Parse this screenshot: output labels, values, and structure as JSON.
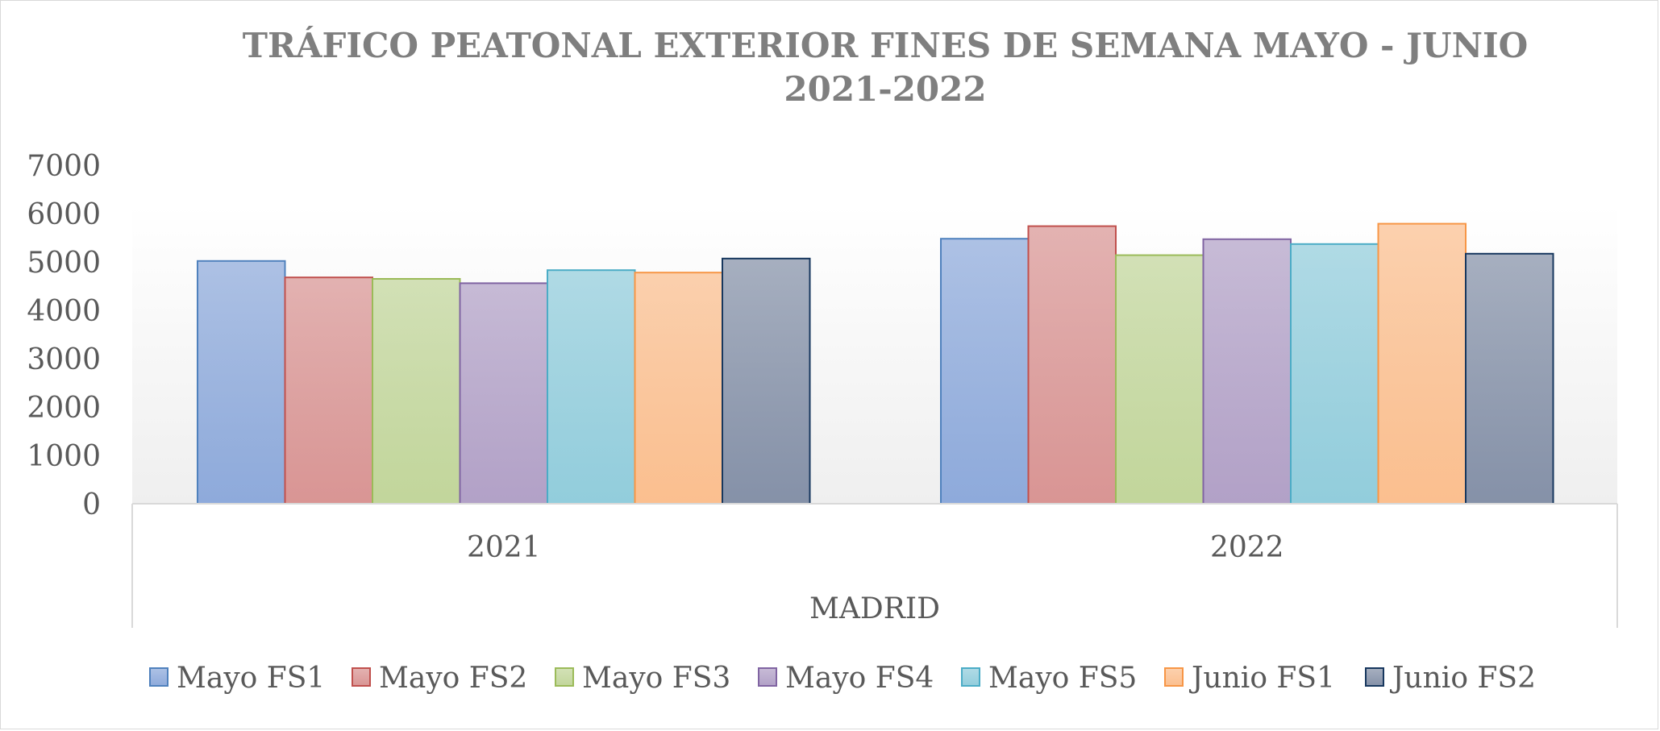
{
  "chart_data": {
    "type": "bar",
    "title": "TRÁFICO PEATONAL EXTERIOR FINES DE SEMANA MAYO - JUNIO 2021-2022",
    "title_lines": [
      "TRÁFICO PEATONAL EXTERIOR FINES DE SEMANA MAYO - JUNIO",
      "2021-2022"
    ],
    "categories": [
      "2021",
      "2022"
    ],
    "group_label": "MADRID",
    "ylim": [
      0,
      7000
    ],
    "yticks": [
      "0",
      "1000",
      "2000",
      "3000",
      "4000",
      "5000",
      "6000",
      "7000"
    ],
    "grid": false,
    "legend_position": "bottom",
    "series": [
      {
        "name": "Mayo FS1",
        "values": [
          5020,
          5480
        ],
        "color": "#8eaadb",
        "stroke": "#4f81bd"
      },
      {
        "name": "Mayo FS2",
        "values": [
          4680,
          5740
        ],
        "color": "#d99594",
        "stroke": "#c0504d"
      },
      {
        "name": "Mayo FS3",
        "values": [
          4650,
          5140
        ],
        "color": "#c2d69b",
        "stroke": "#9bbb59"
      },
      {
        "name": "Mayo FS4",
        "values": [
          4560,
          5470
        ],
        "color": "#b2a1c7",
        "stroke": "#8064a2"
      },
      {
        "name": "Mayo FS5",
        "values": [
          4830,
          5370
        ],
        "color": "#92cddc",
        "stroke": "#4bacc6"
      },
      {
        "name": "Junio FS1",
        "values": [
          4780,
          5790
        ],
        "color": "#fbbf8f",
        "stroke": "#f79646"
      },
      {
        "name": "Junio FS2",
        "values": [
          5070,
          5170
        ],
        "color": "#8591a8",
        "stroke": "#17375e"
      }
    ]
  }
}
